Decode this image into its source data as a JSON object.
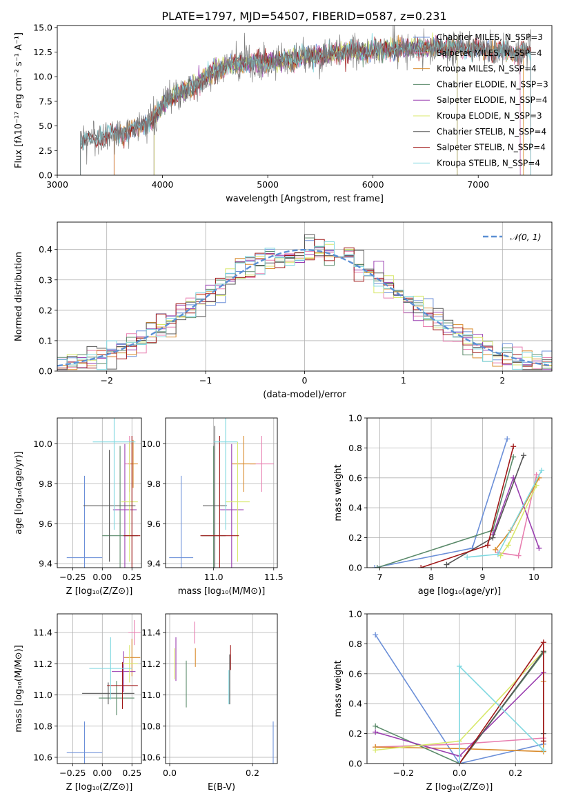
{
  "figure_title": "PLATE=1797, MJD=54507, FIBERID=0587, z=0.231",
  "colors": {
    "Chabrier MILES": "#6b8fd8",
    "Salpeter MILES": "#e87fb0",
    "Kroupa MILES": "#d98a2b",
    "Chabrier ELODIE": "#5a8a6a",
    "Salpeter ELODIE": "#9a3fb0",
    "Kroupa ELODIE": "#d8e86a",
    "Chabrier STELIB": "#555555",
    "Salpeter STELIB": "#a01818",
    "Kroupa STELIB": "#7fd8e0",
    "normal": "#5b8fd4"
  },
  "chart_data": [
    {
      "id": "spectrum",
      "type": "line",
      "xlabel": "wavelength [Angstrom, rest frame]",
      "ylabel": "Flux [fλ10⁻¹⁷ erg cm⁻² s⁻¹ A⁻¹]",
      "xlim": [
        3000,
        7700
      ],
      "ylim": [
        0,
        15.2
      ],
      "xticks": [
        3000,
        4000,
        5000,
        6000,
        7000
      ],
      "yticks": [
        0.0,
        2.5,
        5.0,
        7.5,
        10.0,
        12.5,
        15.0
      ],
      "legend_position": "top-right",
      "legend": [
        {
          "series": "Chabrier MILES",
          "label": "Chabrier MILES, N_SSP=3"
        },
        {
          "series": "Salpeter MILES",
          "label": "Salpeter MILES, N_SSP=4"
        },
        {
          "series": "Kroupa MILES",
          "label": "Kroupa MILES, N_SSP=4"
        },
        {
          "series": "Chabrier ELODIE",
          "label": "Chabrier ELODIE, N_SSP=3"
        },
        {
          "series": "Salpeter ELODIE",
          "label": "Salpeter ELODIE, N_SSP=4"
        },
        {
          "series": "Kroupa ELODIE",
          "label": "Kroupa ELODIE, N_SSP=3"
        },
        {
          "series": "Chabrier STELIB",
          "label": "Chabrier STELIB, N_SSP=4"
        },
        {
          "series": "Salpeter STELIB",
          "label": "Salpeter STELIB, N_SSP=4"
        },
        {
          "series": "Kroupa STELIB",
          "label": "Kroupa STELIB, N_SSP=4"
        }
      ],
      "continuum": [
        [
          3220,
          3.2
        ],
        [
          3300,
          3.6
        ],
        [
          3400,
          3.9
        ],
        [
          3500,
          4.1
        ],
        [
          3600,
          4.3
        ],
        [
          3700,
          4.6
        ],
        [
          3800,
          5.0
        ],
        [
          3900,
          5.6
        ],
        [
          4000,
          7.0
        ],
        [
          4100,
          8.0
        ],
        [
          4200,
          8.6
        ],
        [
          4300,
          9.0
        ],
        [
          4400,
          9.8
        ],
        [
          4500,
          10.6
        ],
        [
          4600,
          11.0
        ],
        [
          4700,
          11.3
        ],
        [
          4800,
          11.3
        ],
        [
          4900,
          11.4
        ],
        [
          5000,
          11.5
        ],
        [
          5100,
          11.7
        ],
        [
          5200,
          11.7
        ],
        [
          5300,
          11.9
        ],
        [
          5400,
          12.1
        ],
        [
          5500,
          12.1
        ],
        [
          5600,
          12.3
        ],
        [
          5700,
          12.4
        ],
        [
          5800,
          12.6
        ],
        [
          5900,
          12.5
        ],
        [
          6000,
          12.6
        ],
        [
          6100,
          12.7
        ],
        [
          6200,
          12.8
        ],
        [
          6300,
          12.8
        ],
        [
          6400,
          12.9
        ],
        [
          6500,
          12.8
        ],
        [
          6600,
          13.0
        ],
        [
          6700,
          12.9
        ],
        [
          6800,
          13.0
        ],
        [
          6900,
          12.9
        ],
        [
          7000,
          12.8
        ],
        [
          7100,
          12.7
        ],
        [
          7200,
          12.6
        ],
        [
          7300,
          12.5
        ],
        [
          7400,
          12.5
        ],
        [
          7500,
          12.6
        ]
      ],
      "series_ranges": {
        "Chabrier MILES": [
          3540,
          7400
        ],
        "Salpeter MILES": [
          3540,
          7400
        ],
        "Kroupa MILES": [
          3540,
          7430
        ],
        "Chabrier ELODIE": [
          3920,
          6800
        ],
        "Salpeter ELODIE": [
          3920,
          6800
        ],
        "Kroupa ELODIE": [
          3920,
          6800
        ],
        "Chabrier STELIB": [
          3220,
          7500
        ],
        "Salpeter STELIB": [
          3220,
          7500
        ],
        "Kroupa STELIB": [
          3220,
          7500
        ]
      }
    },
    {
      "id": "residuals",
      "type": "step-histogram",
      "xlabel": "(data-model)/error",
      "ylabel": "Normed distribution",
      "xlim": [
        -2.5,
        2.5
      ],
      "ylim": [
        0,
        0.49
      ],
      "xticks": [
        -2,
        -1,
        0,
        1,
        2
      ],
      "yticks": [
        0.0,
        0.1,
        0.2,
        0.3,
        0.4
      ],
      "grid": true,
      "legend_position": "top-right",
      "legend_label": "𝒩(0, 1)",
      "bin_width": 0.1
    },
    {
      "id": "z-age",
      "type": "errorbar",
      "xlabel": "Z [log₁₀(Z/Z⊙)]",
      "ylabel": "age  [log₁₀(age/yr)]",
      "xlim": [
        -0.38,
        0.33
      ],
      "ylim": [
        9.38,
        10.13
      ],
      "xticks": [
        -0.25,
        0.0,
        0.25
      ],
      "xticklabels": [
        "−0.25",
        "0.00",
        "0.25"
      ],
      "yticks": [
        9.4,
        9.6,
        9.8,
        10.0
      ],
      "grid": true,
      "points": [
        {
          "series": "Chabrier MILES",
          "x": -0.15,
          "xerr": 0.15,
          "y": 9.43,
          "yerr": 0.41
        },
        {
          "series": "Salpeter MILES",
          "x": 0.23,
          "xerr": 0.04,
          "y": 9.9,
          "yerr": 0.14
        },
        {
          "series": "Kroupa MILES",
          "x": 0.26,
          "xerr": 0.04,
          "y": 9.9,
          "yerr": 0.12
        },
        {
          "series": "Chabrier ELODIE",
          "x": 0.15,
          "xerr": 0.15,
          "y": 9.54,
          "yerr": 0.45
        },
        {
          "series": "Salpeter ELODIE",
          "x": 0.19,
          "xerr": 0.1,
          "y": 9.67,
          "yerr": 0.33
        },
        {
          "series": "Kroupa ELODIE",
          "x": 0.23,
          "xerr": 0.07,
          "y": 9.71,
          "yerr": 0.3
        },
        {
          "series": "Chabrier STELIB",
          "x": 0.06,
          "xerr": 0.22,
          "y": 9.69,
          "yerr": 0.28
        },
        {
          "series": "Salpeter STELIB",
          "x": 0.25,
          "xerr": 0.07,
          "y": 9.54,
          "yerr": 0.5
        },
        {
          "series": "Kroupa STELIB",
          "x": 0.1,
          "xerr": 0.18,
          "y": 10.01,
          "yerr": 0.44
        }
      ]
    },
    {
      "id": "mass-age",
      "type": "errorbar",
      "xlabel": "mass [log₁₀(M/M⊙)]",
      "ylabel": "",
      "xlim": [
        10.6,
        11.53
      ],
      "ylim": [
        9.38,
        10.13
      ],
      "xticks": [
        11.0,
        11.5
      ],
      "xticklabels": [
        "11.0",
        "11.5"
      ],
      "yticks": [
        9.4,
        9.6,
        9.8,
        10.0
      ],
      "grid": true,
      "points": [
        {
          "series": "Chabrier MILES",
          "x": 10.73,
          "xerr": 0.1,
          "y": 9.43,
          "yerr": 0.41
        },
        {
          "series": "Salpeter MILES",
          "x": 11.4,
          "xerr": 0.1,
          "y": 9.9,
          "yerr": 0.14
        },
        {
          "series": "Kroupa MILES",
          "x": 11.25,
          "xerr": 0.1,
          "y": 9.9,
          "yerr": 0.14
        },
        {
          "series": "Chabrier ELODIE",
          "x": 11.0,
          "xerr": 0.1,
          "y": 9.54,
          "yerr": 0.45
        },
        {
          "series": "Salpeter ELODIE",
          "x": 11.15,
          "xerr": 0.1,
          "y": 9.67,
          "yerr": 0.33
        },
        {
          "series": "Kroupa ELODIE",
          "x": 11.2,
          "xerr": 0.1,
          "y": 9.71,
          "yerr": 0.3
        },
        {
          "series": "Chabrier STELIB",
          "x": 11.01,
          "xerr": 0.1,
          "y": 9.69,
          "yerr": 0.4
        },
        {
          "series": "Salpeter STELIB",
          "x": 11.05,
          "xerr": 0.16,
          "y": 9.54,
          "yerr": 0.5
        },
        {
          "series": "Kroupa STELIB",
          "x": 11.1,
          "xerr": 0.1,
          "y": 10.01,
          "yerr": 0.44
        }
      ]
    },
    {
      "id": "age-weight",
      "type": "line",
      "xlabel": "age  [log₁₀(age/yr)]",
      "ylabel": "mass weight",
      "xlim": [
        6.75,
        10.35
      ],
      "ylim": [
        0,
        1.0
      ],
      "xticks": [
        7,
        8,
        9,
        10
      ],
      "yticks": [
        0.0,
        0.2,
        0.4,
        0.6,
        0.8,
        1.0
      ],
      "grid": true,
      "series": [
        {
          "name": "Chabrier MILES",
          "x": [
            6.9,
            8.8,
            9.48
          ],
          "y": [
            0.0,
            0.13,
            0.86
          ]
        },
        {
          "name": "Salpeter MILES",
          "x": [
            9.3,
            9.7,
            10.05
          ],
          "y": [
            0.1,
            0.08,
            0.62
          ]
        },
        {
          "name": "Kroupa MILES",
          "x": [
            9.25,
            9.55,
            10.1
          ],
          "y": [
            0.12,
            0.25,
            0.6
          ]
        },
        {
          "name": "Chabrier ELODIE",
          "x": [
            6.95,
            9.2,
            9.6
          ],
          "y": [
            0.0,
            0.25,
            0.74
          ]
        },
        {
          "name": "Salpeter ELODIE",
          "x": [
            9.2,
            9.6,
            10.1
          ],
          "y": [
            0.22,
            0.6,
            0.13
          ]
        },
        {
          "name": "Kroupa ELODIE",
          "x": [
            9.35,
            9.5,
            10.05
          ],
          "y": [
            0.08,
            0.15,
            0.55
          ]
        },
        {
          "name": "Chabrier STELIB",
          "x": [
            8.3,
            9.2,
            9.8
          ],
          "y": [
            0.02,
            0.2,
            0.75
          ]
        },
        {
          "name": "Salpeter STELIB",
          "x": [
            7.8,
            9.1,
            9.6
          ],
          "y": [
            0.0,
            0.15,
            0.81
          ]
        },
        {
          "name": "Kroupa STELIB",
          "x": [
            8.7,
            9.3,
            10.15
          ],
          "y": [
            0.07,
            0.09,
            0.65
          ]
        }
      ]
    },
    {
      "id": "z-mass",
      "type": "errorbar",
      "xlabel": "Z [log₁₀(Z/Z⊙)]",
      "ylabel": "mass [log₁₀(M/M⊙)]",
      "xlim": [
        -0.38,
        0.33
      ],
      "ylim": [
        10.56,
        11.52
      ],
      "xticks": [
        -0.25,
        0.0,
        0.25
      ],
      "xticklabels": [
        "−0.25",
        "0.00",
        "0.25"
      ],
      "yticks": [
        10.6,
        10.8,
        11.0,
        11.2,
        11.4
      ],
      "grid": true,
      "points": [
        {
          "series": "Chabrier MILES",
          "x": -0.15,
          "xerr": 0.15,
          "y": 10.63,
          "yerr": 0.2
        },
        {
          "series": "Salpeter MILES",
          "x": 0.27,
          "xerr": 0.05,
          "y": 11.4,
          "yerr": 0.08
        },
        {
          "series": "Kroupa MILES",
          "x": 0.25,
          "xerr": 0.07,
          "y": 11.24,
          "yerr": 0.12
        },
        {
          "series": "Chabrier ELODIE",
          "x": 0.12,
          "xerr": 0.15,
          "y": 10.98,
          "yerr": 0.11
        },
        {
          "series": "Salpeter ELODIE",
          "x": 0.18,
          "xerr": 0.1,
          "y": 11.15,
          "yerr": 0.13
        },
        {
          "series": "Kroupa ELODIE",
          "x": 0.23,
          "xerr": 0.07,
          "y": 11.2,
          "yerr": 0.12
        },
        {
          "series": "Chabrier STELIB",
          "x": 0.05,
          "xerr": 0.22,
          "y": 11.01,
          "yerr": 0.07
        },
        {
          "series": "Salpeter STELIB",
          "x": 0.17,
          "xerr": 0.13,
          "y": 11.06,
          "yerr": 0.15
        },
        {
          "series": "Kroupa STELIB",
          "x": 0.07,
          "xerr": 0.18,
          "y": 11.17,
          "yerr": 0.2
        }
      ]
    },
    {
      "id": "ebv-mass",
      "type": "errorbar",
      "xlabel": "E(B-V)",
      "ylabel": "",
      "xlim": [
        -0.01,
        0.26
      ],
      "ylim": [
        10.56,
        11.52
      ],
      "xticks": [
        0.0,
        0.2
      ],
      "xticklabels": [
        "0.0",
        "0.2"
      ],
      "yticks": [
        10.6,
        10.8,
        11.0,
        11.2,
        11.4
      ],
      "grid": true,
      "points": [
        {
          "series": "Chabrier MILES",
          "x": 0.25,
          "xerr": 0.0,
          "y": 10.66,
          "yerr": 0.17
        },
        {
          "series": "Salpeter MILES",
          "x": 0.06,
          "xerr": 0.0,
          "y": 11.4,
          "yerr": 0.07
        },
        {
          "series": "Kroupa MILES",
          "x": 0.062,
          "xerr": 0.0,
          "y": 11.24,
          "yerr": 0.06
        },
        {
          "series": "Chabrier ELODIE",
          "x": 0.04,
          "xerr": 0.0,
          "y": 11.07,
          "yerr": 0.15
        },
        {
          "series": "Salpeter ELODIE",
          "x": 0.015,
          "xerr": 0.0,
          "y": 11.23,
          "yerr": 0.14
        },
        {
          "series": "Kroupa ELODIE",
          "x": 0.012,
          "xerr": 0.0,
          "y": 11.2,
          "yerr": 0.1
        },
        {
          "series": "Chabrier STELIB",
          "x": 0.145,
          "xerr": 0.0,
          "y": 11.1,
          "yerr": 0.16
        },
        {
          "series": "Salpeter STELIB",
          "x": 0.147,
          "xerr": 0.0,
          "y": 11.24,
          "yerr": 0.08
        },
        {
          "series": "Kroupa STELIB",
          "x": 0.143,
          "xerr": 0.0,
          "y": 11.05,
          "yerr": 0.11
        }
      ]
    },
    {
      "id": "z-weight",
      "type": "line",
      "xlabel": "Z [log₁₀(Z/Z⊙)]",
      "ylabel": "mass weight",
      "xlim": [
        -0.33,
        0.33
      ],
      "ylim": [
        0,
        1.0
      ],
      "xticks": [
        -0.2,
        0.0,
        0.2
      ],
      "xticklabels": [
        "−0.2",
        "0.0",
        "0.2"
      ],
      "yticks": [
        0.0,
        0.2,
        0.4,
        0.6,
        0.8,
        1.0
      ],
      "grid": true,
      "series": [
        {
          "name": "Chabrier MILES",
          "x": [
            -0.3,
            0.0,
            0.3
          ],
          "y": [
            0.86,
            0.0,
            0.13
          ]
        },
        {
          "name": "Salpeter MILES",
          "x": [
            -0.3,
            0.0,
            0.3
          ],
          "y": [
            0.11,
            0.13,
            0.17
          ]
        },
        {
          "name": "Kroupa MILES",
          "x": [
            -0.3,
            0.0,
            0.3,
            0.3
          ],
          "y": [
            0.11,
            0.1,
            0.08,
            0.55
          ]
        },
        {
          "name": "Chabrier ELODIE",
          "x": [
            -0.3,
            0.0,
            0.3
          ],
          "y": [
            0.25,
            0.0,
            0.74
          ]
        },
        {
          "name": "Salpeter ELODIE",
          "x": [
            -0.3,
            0.0,
            0.3
          ],
          "y": [
            0.21,
            0.05,
            0.61
          ]
        },
        {
          "name": "Kroupa ELODIE",
          "x": [
            -0.3,
            0.0,
            0.3
          ],
          "y": [
            0.09,
            0.15,
            0.75
          ]
        },
        {
          "name": "Chabrier STELIB",
          "x": [
            0.0,
            0.3,
            0.3
          ],
          "y": [
            0.0,
            0.75,
            0.2
          ]
        },
        {
          "name": "Salpeter STELIB",
          "x": [
            0.0,
            0.3,
            0.3
          ],
          "y": [
            0.0,
            0.81,
            0.15
          ]
        },
        {
          "name": "Kroupa STELIB",
          "x": [
            0.0,
            0.0,
            0.3
          ],
          "y": [
            0.0,
            0.65,
            0.09
          ]
        }
      ]
    }
  ]
}
